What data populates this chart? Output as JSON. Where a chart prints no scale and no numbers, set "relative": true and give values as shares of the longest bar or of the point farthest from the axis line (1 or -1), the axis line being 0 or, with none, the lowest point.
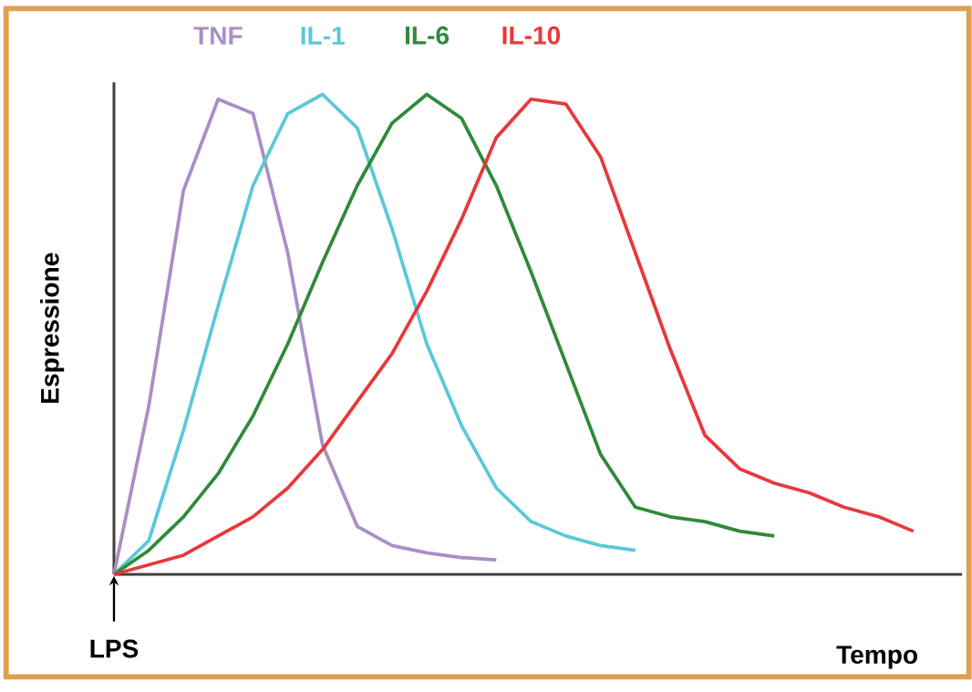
{
  "chart_data": {
    "type": "line",
    "relative": true,
    "xlabel": "Tempo",
    "ylabel": "Espressione",
    "legend": false,
    "marker": "none",
    "line_style": "solid",
    "annotations": [
      "LPS"
    ],
    "categories": [
      null,
      null,
      null,
      null,
      null,
      null,
      null,
      null,
      null,
      null,
      null,
      null,
      null,
      null,
      null,
      null,
      null,
      null,
      null,
      null,
      null,
      null,
      null,
      null
    ],
    "series": [
      {
        "name": "TNF",
        "color": "#a98fc4",
        "values": [
          0,
          0.35,
          0.8,
          0.99,
          0.96,
          0.67,
          0.27,
          0.1,
          0.06,
          0.045,
          0.035,
          0.03,
          null,
          null,
          null,
          null,
          null,
          null,
          null,
          null,
          null,
          null,
          null,
          null
        ]
      },
      {
        "name": "IL-1",
        "color": "#5bc8d8",
        "values": [
          0,
          0.07,
          0.3,
          0.56,
          0.81,
          0.96,
          1,
          0.93,
          0.72,
          0.48,
          0.31,
          0.18,
          0.11,
          0.08,
          0.06,
          0.05,
          null,
          null,
          null,
          null,
          null,
          null,
          null,
          null
        ]
      },
      {
        "name": "IL-6",
        "color": "#2f8a3a",
        "values": [
          0,
          0.05,
          0.12,
          0.21,
          0.33,
          0.48,
          0.65,
          0.81,
          0.94,
          1,
          0.95,
          0.81,
          0.63,
          0.44,
          0.25,
          0.14,
          0.12,
          0.11,
          0.09,
          0.08,
          null,
          null,
          null,
          null
        ]
      },
      {
        "name": "IL-10",
        "color": "#e8383a",
        "values": [
          0,
          0.02,
          0.04,
          0.08,
          0.12,
          0.18,
          0.26,
          0.36,
          0.46,
          0.59,
          0.74,
          0.91,
          0.99,
          0.98,
          0.87,
          0.67,
          0.47,
          0.29,
          0.22,
          0.19,
          0.17,
          0.14,
          0.12,
          0.09
        ]
      }
    ]
  }
}
